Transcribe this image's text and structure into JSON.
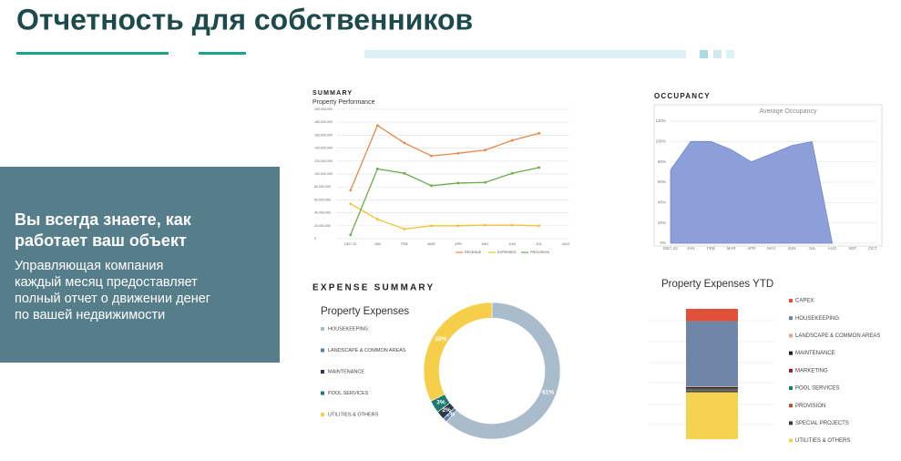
{
  "header": {
    "title": "Отчетность для собственников"
  },
  "panel": {
    "heading": [
      "Вы всегда знаете, как",
      "работает ваш объект"
    ],
    "text": [
      "Управляющая компания",
      "каждый месяц предоставляет",
      "полный отчет о движении денег",
      "по вашей недвижимости"
    ]
  },
  "chart_data": [
    {
      "type": "line",
      "title": "SUMMARY",
      "subtitle": "Property Performance",
      "categories": [
        "DEC 22",
        "JAN",
        "FEB",
        "MAR",
        "APR",
        "MAY",
        "JUN",
        "JUL",
        "AUG"
      ],
      "series": [
        {
          "name": "REVENUE",
          "color": "#e8894a",
          "values": [
            75000000,
            175000000,
            148000000,
            128000000,
            132000000,
            137000000,
            152000000,
            163000000,
            null
          ]
        },
        {
          "name": "EXPENSES",
          "color": "#f2c230",
          "values": [
            54000000,
            30000000,
            15000000,
            20000000,
            20000000,
            21000000,
            21000000,
            20000000,
            null
          ]
        },
        {
          "name": "PROVISION",
          "color": "#6aac4c",
          "values": [
            6000000,
            108000000,
            101000000,
            82000000,
            86000000,
            87000000,
            101000000,
            110000000,
            null
          ]
        }
      ],
      "ylim": [
        0,
        200000000
      ],
      "yticks": [
        {
          "value": 0,
          "label": "0"
        },
        {
          "value": 20000000,
          "label": "20,000,000"
        },
        {
          "value": 40000000,
          "label": "40,000,000"
        },
        {
          "value": 60000000,
          "label": "60,000,000"
        },
        {
          "value": 80000000,
          "label": "80,000,000"
        },
        {
          "value": 100000000,
          "label": "100,000,000"
        },
        {
          "value": 120000000,
          "label": "120,000,000"
        },
        {
          "value": 140000000,
          "label": "140,000,000"
        },
        {
          "value": 160000000,
          "label": "160,000,000"
        },
        {
          "value": 180000000,
          "label": "180,000,000"
        },
        {
          "value": 200000000,
          "label": "200,000,000"
        }
      ],
      "grid": true
    },
    {
      "type": "area",
      "title": "OCCUPANCY",
      "subtitle": "Average Occupancy",
      "categories": [
        "DEC 22",
        "JAN",
        "FEB",
        "MAR",
        "APR",
        "MAY",
        "JUN",
        "JUL",
        "AUG",
        "SEP",
        "OCT"
      ],
      "values": [
        72,
        100,
        100,
        92,
        80,
        88,
        96,
        100,
        0,
        null,
        null
      ],
      "color": "#8d9fd9",
      "ylim": [
        0,
        120
      ],
      "yticks": [
        {
          "value": 0,
          "label": "0%"
        },
        {
          "value": 20,
          "label": "20%"
        },
        {
          "value": 40,
          "label": "40%"
        },
        {
          "value": 60,
          "label": "60%"
        },
        {
          "value": 80,
          "label": "80%"
        },
        {
          "value": 100,
          "label": "100%"
        },
        {
          "value": 120,
          "label": "120%"
        }
      ],
      "grid": true
    },
    {
      "type": "donut",
      "title": "EXPENSE SUMMARY",
      "subtitle": "Property Expenses",
      "categories": [
        "HOUSEKEEPING",
        "LANDSCAPE & COMMON AREAS",
        "MAINTENANCE",
        "POOL SERVICES",
        "UTILITIES & OTHERS"
      ],
      "values": [
        61,
        1,
        2,
        3,
        32
      ],
      "value_labels": [
        "61%",
        "1%",
        "2%",
        "3%",
        "32%"
      ],
      "colors": [
        "#a8bccb",
        "#5b7fa6",
        "#2b3a4a",
        "#1e7a6e",
        "#f5cf4a"
      ]
    },
    {
      "type": "stacked_bar",
      "title": "Property Expenses YTD",
      "series": [
        {
          "name": "CAPEX",
          "color": "#e0513a",
          "values": [
            9.5
          ]
        },
        {
          "name": "HOUSEKEEPING",
          "color": "#6f86a8",
          "values": [
            50
          ]
        },
        {
          "name": "LANDSCAPE & COMMON AREAS",
          "color": "#f0a18a",
          "values": [
            0.5
          ]
        },
        {
          "name": "MAINTENANCE",
          "color": "#1f1f1f",
          "values": [
            1
          ]
        },
        {
          "name": "MARKETING",
          "color": "#8b1e2e",
          "values": [
            0.5
          ]
        },
        {
          "name": "POOL SERVICES",
          "color": "#1e7a6e",
          "values": [
            1
          ]
        },
        {
          "name": "PROVISION",
          "color": "#b5552e",
          "values": [
            0.5
          ]
        },
        {
          "name": "SPECIAL PROJECTS",
          "color": "#2f3b48",
          "values": [
            1
          ]
        },
        {
          "name": "UTILITIES & OTHERS",
          "color": "#f5d250",
          "values": [
            36
          ]
        }
      ]
    }
  ]
}
